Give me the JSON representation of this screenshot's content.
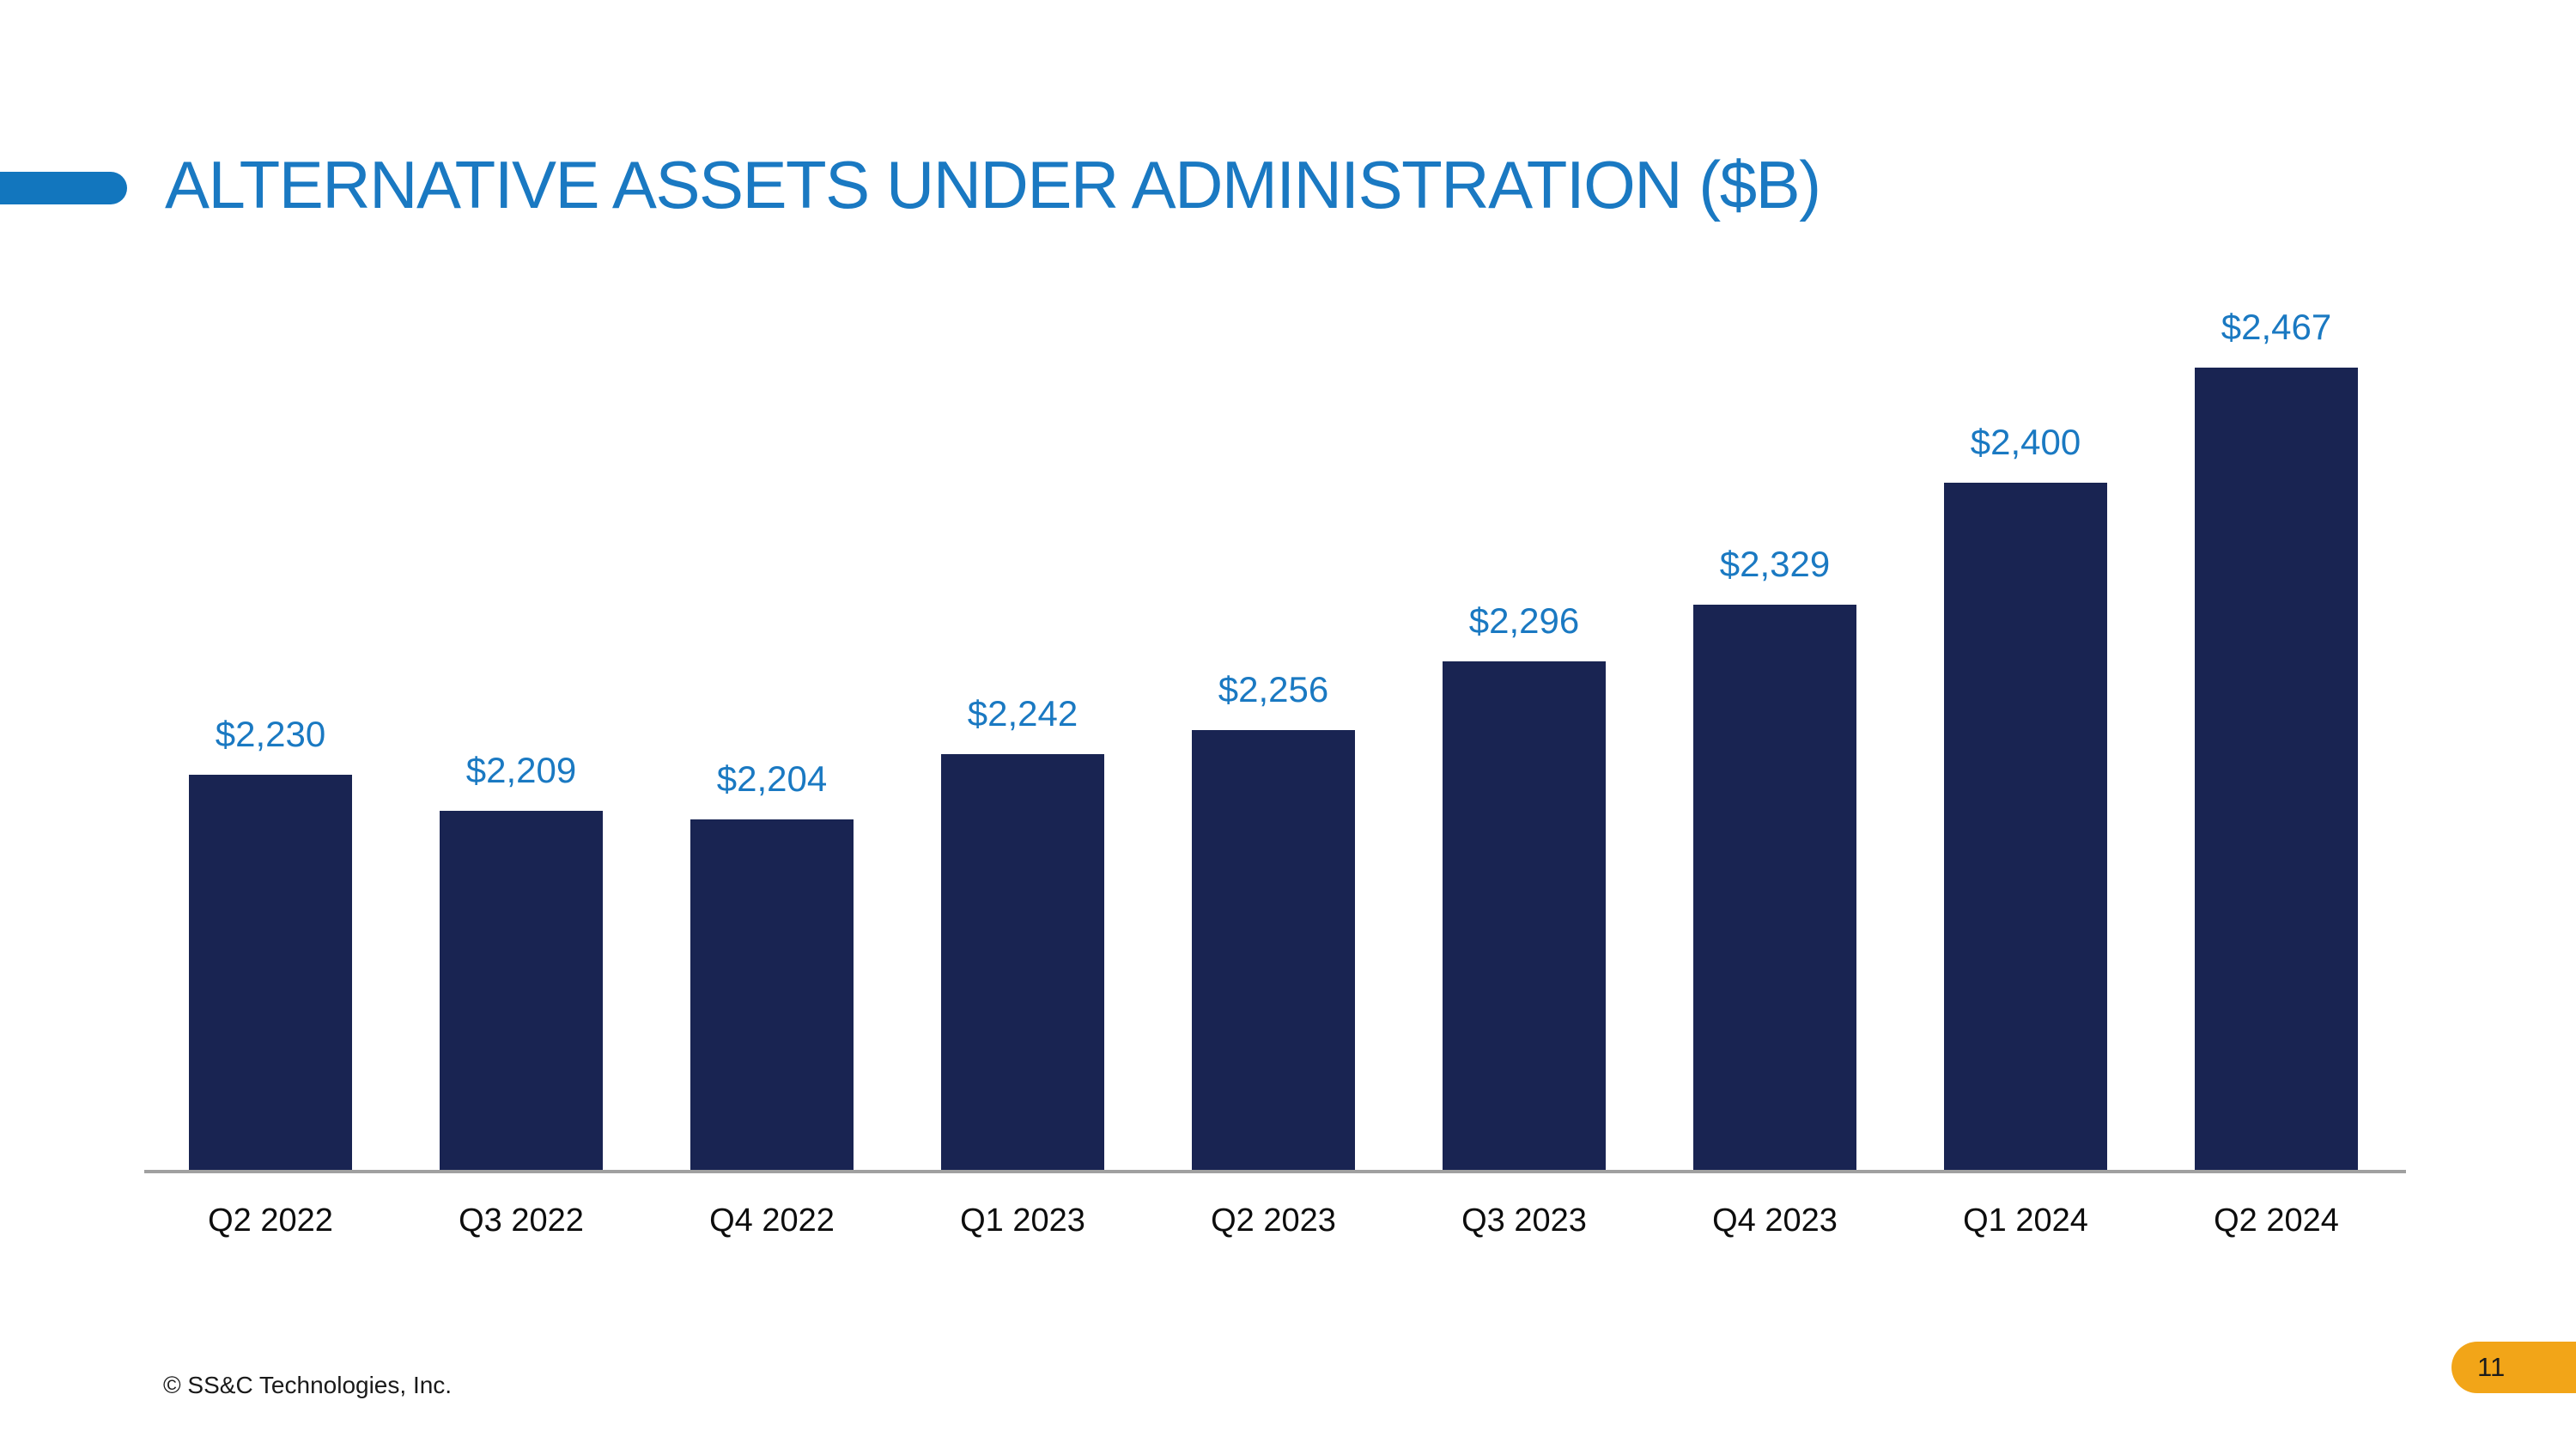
{
  "slide": {
    "title": "ALTERNATIVE ASSETS UNDER ADMINISTRATION ($B)",
    "footer": "© SS&C Technologies, Inc.",
    "page_number": "11"
  },
  "colors": {
    "title_blue": "#1A79C2",
    "accent_pill_blue": "#1276BE",
    "bar_navy": "#192452",
    "data_label_blue": "#1A79C2",
    "axis_gray": "#A0A0A0",
    "axis_label_black": "#0D0D0D",
    "footer_text": "#1A1A1A",
    "badge_orange": "#F2A518"
  },
  "chart_data": {
    "type": "bar",
    "title": "ALTERNATIVE ASSETS UNDER ADMINISTRATION ($B)",
    "categories": [
      "Q2 2022",
      "Q3 2022",
      "Q4 2022",
      "Q1 2023",
      "Q2 2023",
      "Q3 2023",
      "Q4 2023",
      "Q1 2024",
      "Q2 2024"
    ],
    "values": [
      2230,
      2209,
      2204,
      2242,
      2256,
      2296,
      2329,
      2400,
      2467
    ],
    "data_labels": [
      "$2,230",
      "$2,209",
      "$2,204",
      "$2,242",
      "$2,256",
      "$2,296",
      "$2,329",
      "$2,400",
      "$2,467"
    ],
    "xlabel": "",
    "ylabel": "Alternative assets under administration ($B)",
    "ylim": [
      2000,
      2500
    ],
    "grid": false,
    "legend": false,
    "data_labels_visible": true
  }
}
